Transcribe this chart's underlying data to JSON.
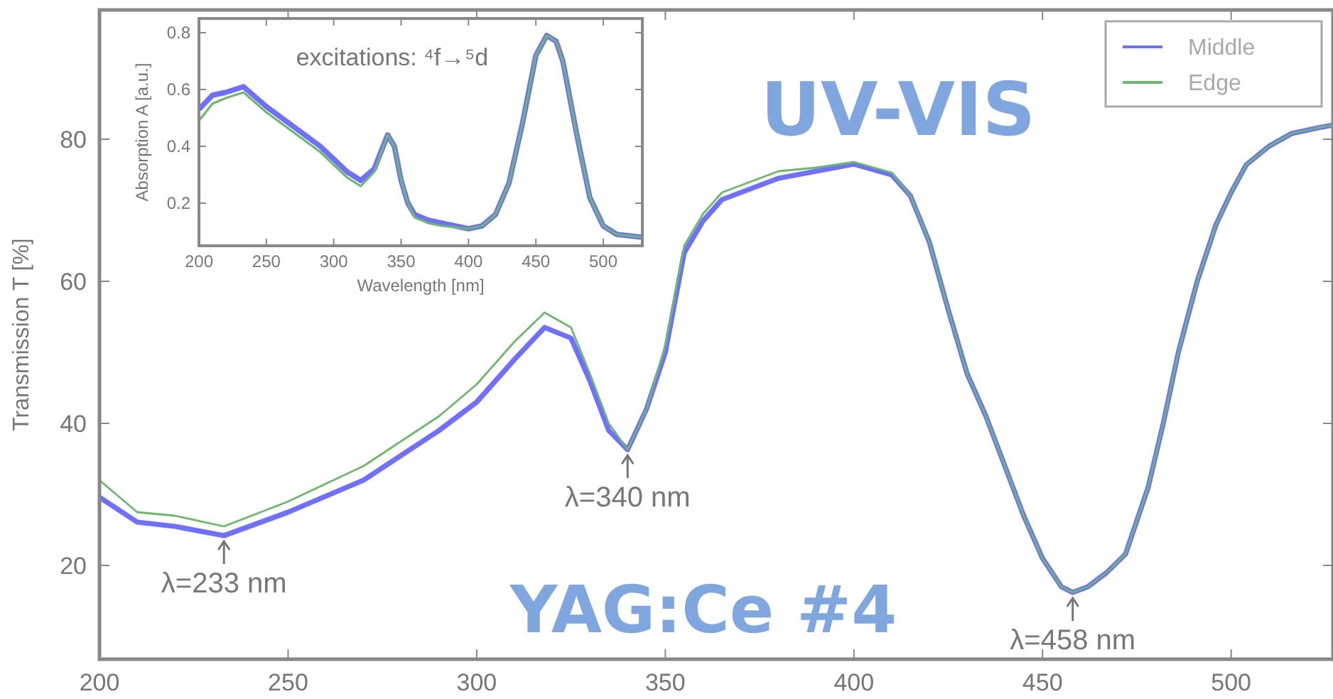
{
  "chart_data": [
    {
      "type": "line",
      "ylabel": "Transmission T [%]",
      "xlim": [
        200,
        527
      ],
      "xticks": [
        200,
        250,
        300,
        350,
        400,
        450,
        500
      ],
      "ylim": [
        6.8,
        98.2
      ],
      "yticks": [
        20,
        40,
        60,
        80
      ],
      "grid": false,
      "legend": "top right",
      "marker": "none",
      "line_style": "solid",
      "x": [
        200,
        210,
        220,
        233,
        250,
        270,
        290,
        300,
        310,
        318,
        325,
        330,
        335,
        340,
        345,
        350,
        355,
        360,
        365,
        370,
        380,
        390,
        400,
        410,
        415,
        420,
        425,
        430,
        435,
        440,
        445,
        450,
        455,
        458,
        462,
        467,
        472,
        478,
        482,
        486,
        491,
        496,
        500,
        504,
        510,
        516,
        523,
        527
      ],
      "series": [
        {
          "name": "Middle",
          "color": "#7070ff",
          "values": [
            29.6,
            26.1,
            25.5,
            24.2,
            27.5,
            32,
            39,
            43,
            49,
            53.5,
            52,
            46,
            39,
            36.3,
            42,
            50,
            64,
            68.5,
            71.5,
            72.5,
            74.5,
            75.5,
            76.5,
            75,
            72,
            65.5,
            56,
            47,
            41,
            34,
            27,
            21,
            17,
            16.2,
            17,
            19,
            21.6,
            31,
            40,
            50,
            60,
            68,
            72.5,
            76.4,
            79,
            80.8,
            81.6,
            82
          ]
        },
        {
          "name": "Edge",
          "color": "#6db86d",
          "values": [
            32,
            27.5,
            27,
            25.5,
            29,
            34,
            41,
            45.5,
            51.5,
            55.6,
            53.5,
            47,
            40,
            36.3,
            42,
            51,
            65,
            69.5,
            72.5,
            73.5,
            75.5,
            76,
            76.8,
            75.3,
            72,
            65.5,
            56,
            47,
            41,
            34,
            27,
            21,
            17,
            16.2,
            17,
            19,
            21.6,
            31,
            40,
            50,
            60,
            68,
            72.5,
            76.4,
            79,
            80.8,
            81.6,
            82
          ]
        }
      ],
      "annotations": [
        "UV-VIS",
        "YAG:Ce #4",
        {
          "text": "λ=233 nm",
          "x": 233,
          "y": 24.2
        },
        {
          "text": "λ=340 nm",
          "x": 340,
          "y": 36.3
        },
        {
          "text": "λ=458 nm",
          "x": 458,
          "y": 16.2
        }
      ]
    },
    {
      "type": "line",
      "xlabel": "Wavelength [nm]",
      "ylabel": "Absorption A [a.u.]",
      "xlim": [
        200,
        529
      ],
      "xticks": [
        200,
        250,
        300,
        350,
        400,
        450,
        500
      ],
      "ylim": [
        0.05,
        0.85
      ],
      "yticks": [
        0.2,
        0.4,
        0.6,
        0.8
      ],
      "grid": false,
      "legend": false,
      "marker": "none",
      "line_style": "solid",
      "x": [
        200,
        210,
        220,
        233,
        250,
        270,
        290,
        310,
        320,
        330,
        340,
        345,
        350,
        355,
        360,
        370,
        380,
        400,
        410,
        420,
        430,
        440,
        450,
        458,
        465,
        470,
        480,
        490,
        500,
        510,
        529
      ],
      "series": [
        {
          "color": "#7070ff",
          "values": [
            0.53,
            0.58,
            0.59,
            0.61,
            0.54,
            0.47,
            0.4,
            0.31,
            0.28,
            0.32,
            0.44,
            0.4,
            0.28,
            0.2,
            0.16,
            0.14,
            0.13,
            0.11,
            0.12,
            0.16,
            0.27,
            0.48,
            0.72,
            0.79,
            0.77,
            0.7,
            0.45,
            0.22,
            0.12,
            0.09,
            0.08
          ]
        },
        {
          "color": "#6db86d",
          "values": [
            0.49,
            0.55,
            0.57,
            0.59,
            0.52,
            0.45,
            0.38,
            0.29,
            0.26,
            0.31,
            0.44,
            0.4,
            0.28,
            0.2,
            0.15,
            0.13,
            0.12,
            0.11,
            0.12,
            0.16,
            0.27,
            0.48,
            0.72,
            0.79,
            0.77,
            0.7,
            0.45,
            0.22,
            0.12,
            0.09,
            0.08
          ]
        }
      ],
      "annotations": [
        "excitations: ⁴f→⁵d"
      ]
    }
  ]
}
